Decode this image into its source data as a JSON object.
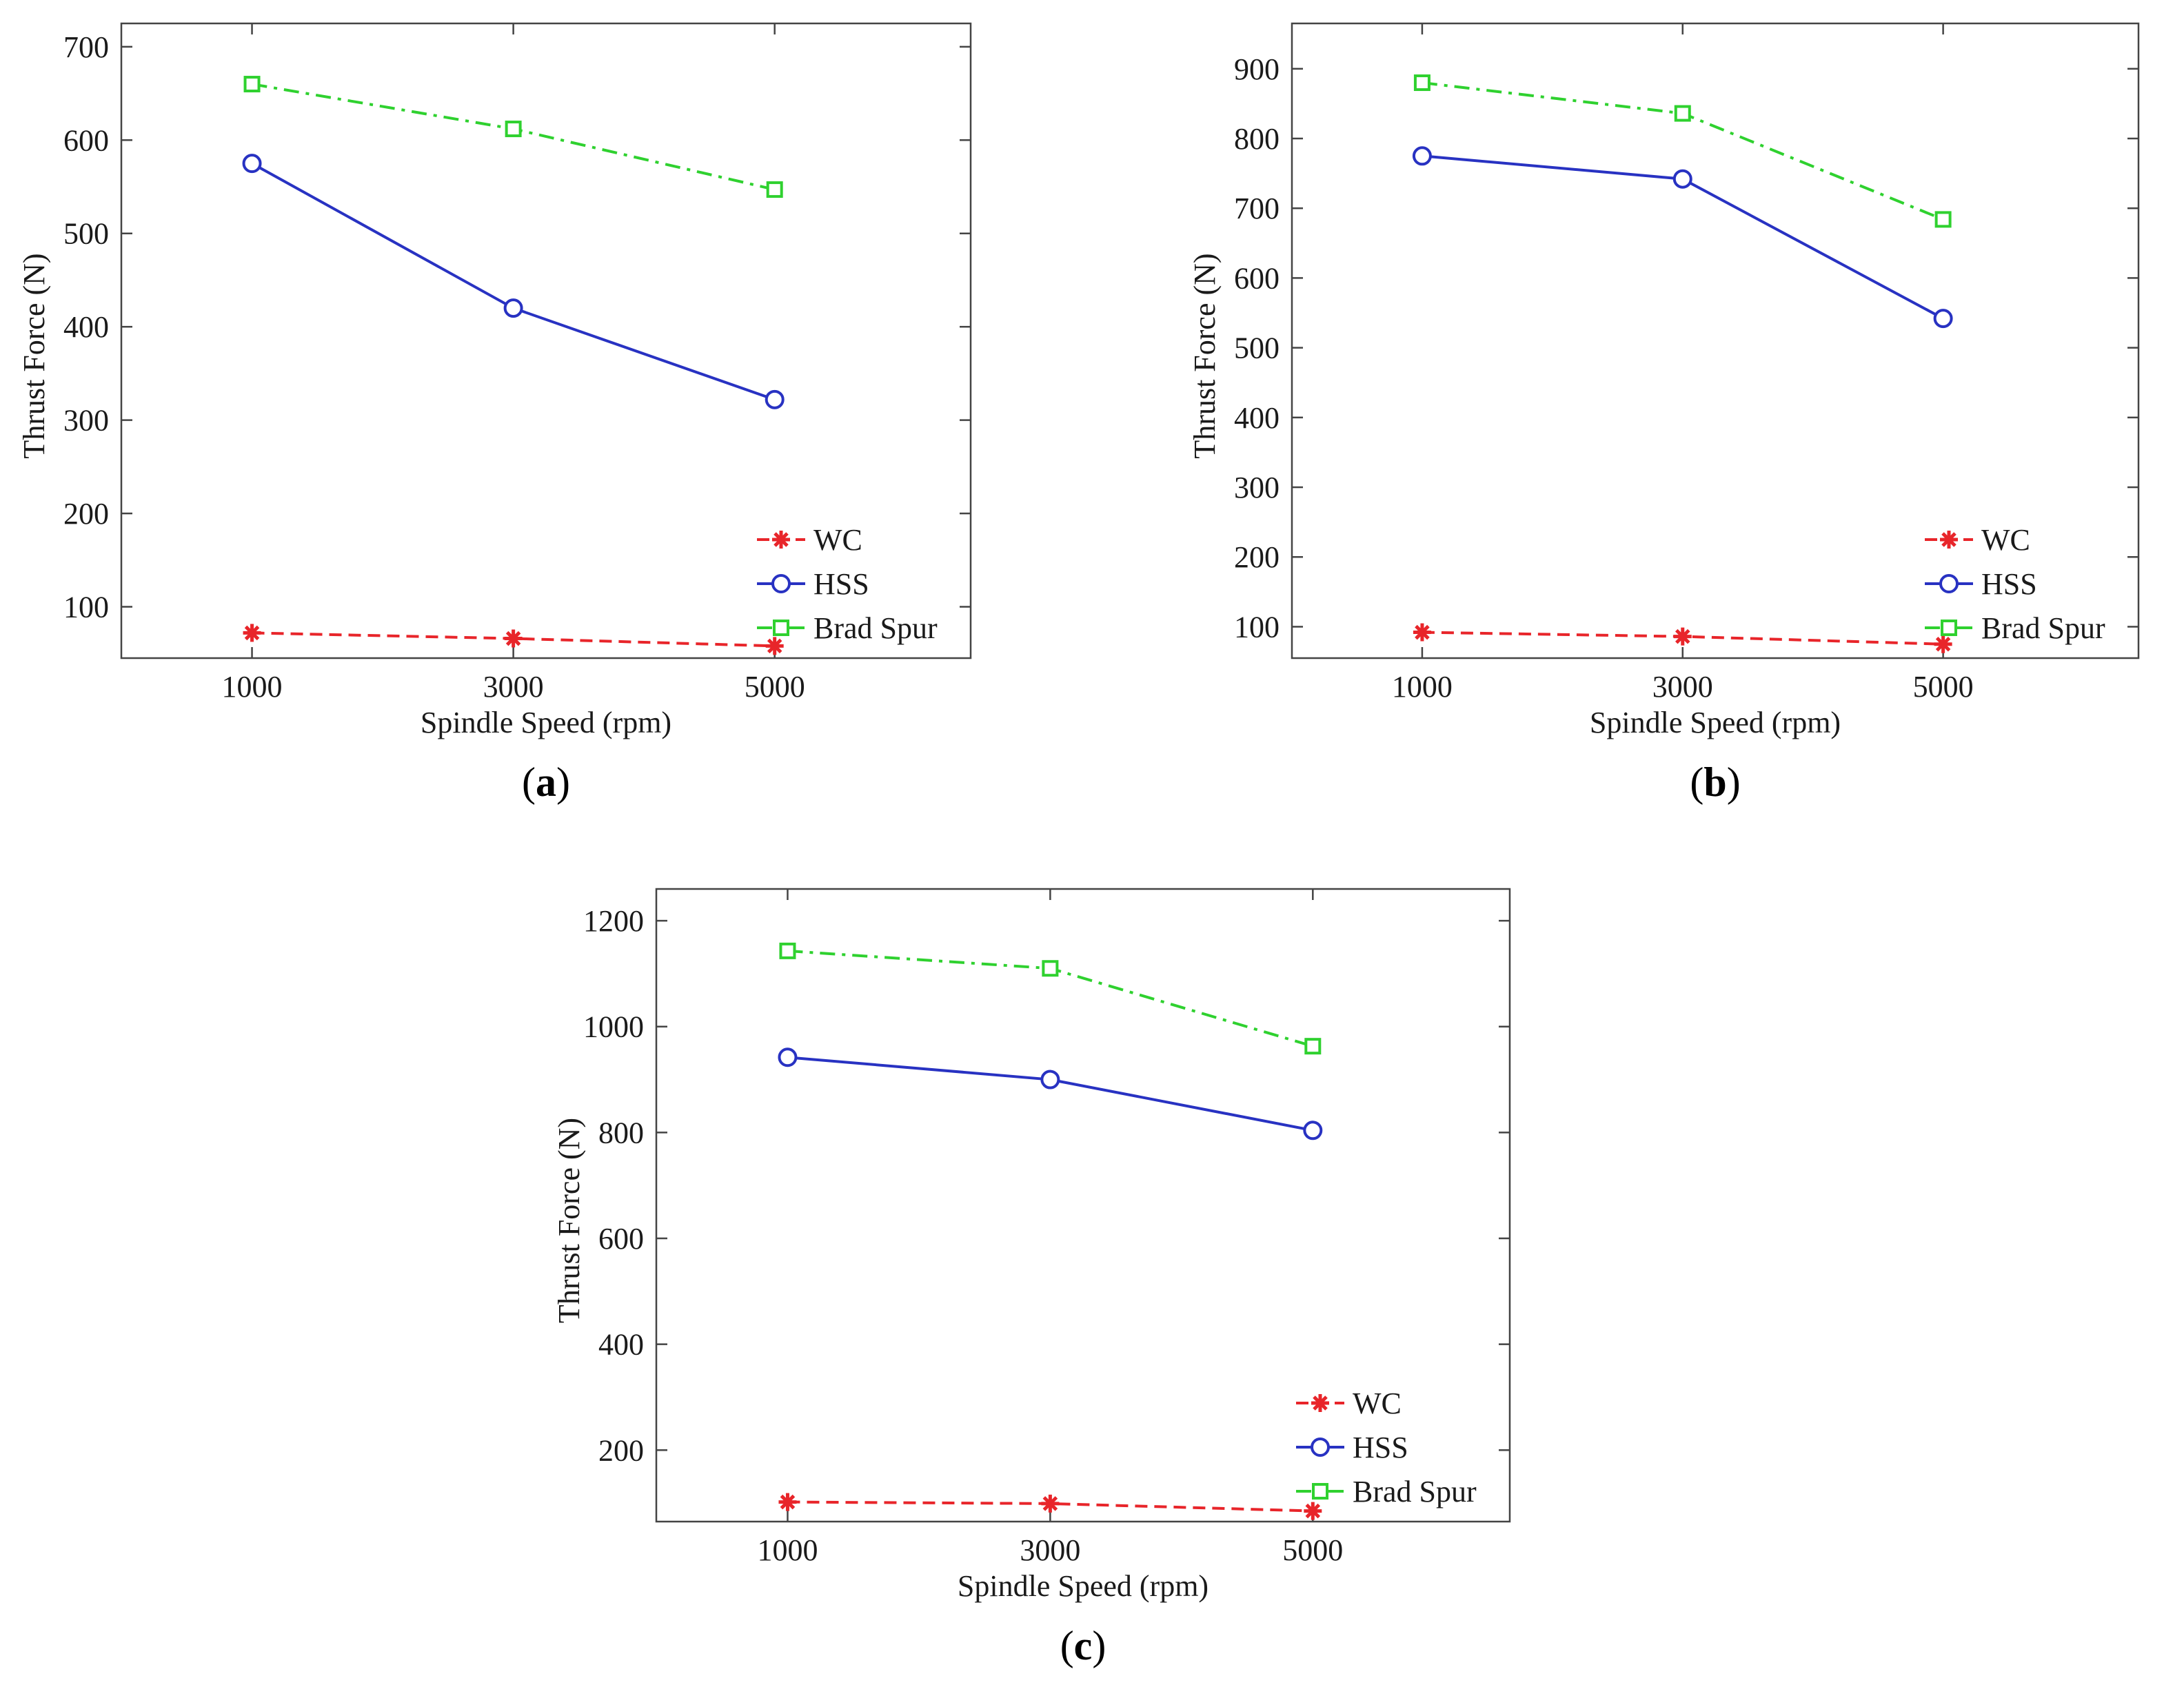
{
  "figure": {
    "colors": {
      "WC": "#e8252a",
      "HSS": "#2832c2",
      "Brad Spur": "#2fd12f",
      "axis": "#444444",
      "text": "#1a1a1a"
    }
  },
  "chart_data": [
    {
      "panel": "a",
      "caption_letter": "a",
      "type": "line",
      "xlabel": "Spindle Speed (rpm)",
      "ylabel": "Thrust Force (N)",
      "x": [
        1000,
        3000,
        5000
      ],
      "xticks": [
        "1000",
        "3000",
        "5000"
      ],
      "xlim": [
        0,
        6500
      ],
      "ylim": [
        45,
        725
      ],
      "yticks": [
        100,
        200,
        300,
        400,
        500,
        600,
        700
      ],
      "legend_position": "bottom-right",
      "series": [
        {
          "name": "WC",
          "values": [
            72,
            66,
            58
          ],
          "marker": "star",
          "line": "dashed",
          "color": "#e8252a"
        },
        {
          "name": "HSS",
          "values": [
            575,
            420,
            322
          ],
          "marker": "circle",
          "line": "solid",
          "color": "#2832c2"
        },
        {
          "name": "Brad Spur",
          "values": [
            660,
            612,
            547
          ],
          "marker": "square",
          "line": "dashdot",
          "color": "#2fd12f"
        }
      ]
    },
    {
      "panel": "b",
      "caption_letter": "b",
      "type": "line",
      "xlabel": "Spindle Speed (rpm)",
      "ylabel": "Thrust Force (N)",
      "x": [
        1000,
        3000,
        5000
      ],
      "xticks": [
        "1000",
        "3000",
        "5000"
      ],
      "xlim": [
        0,
        6500
      ],
      "ylim": [
        55,
        965
      ],
      "yticks": [
        100,
        200,
        300,
        400,
        500,
        600,
        700,
        800,
        900
      ],
      "legend_position": "bottom-right",
      "series": [
        {
          "name": "WC",
          "values": [
            92,
            86,
            75
          ],
          "marker": "star",
          "line": "dashed",
          "color": "#e8252a"
        },
        {
          "name": "HSS",
          "values": [
            775,
            742,
            542
          ],
          "marker": "circle",
          "line": "solid",
          "color": "#2832c2"
        },
        {
          "name": "Brad Spur",
          "values": [
            880,
            836,
            684
          ],
          "marker": "square",
          "line": "dashdot",
          "color": "#2fd12f"
        }
      ]
    },
    {
      "panel": "c",
      "caption_letter": "c",
      "type": "line",
      "xlabel": "Spindle Speed (rpm)",
      "ylabel": "Thrust Force (N)",
      "x": [
        1000,
        3000,
        5000
      ],
      "xticks": [
        "1000",
        "3000",
        "5000"
      ],
      "xlim": [
        0,
        6500
      ],
      "ylim": [
        65,
        1260
      ],
      "yticks": [
        200,
        400,
        600,
        800,
        1000,
        1200
      ],
      "legend_position": "bottom-right",
      "series": [
        {
          "name": "WC",
          "values": [
            102,
            99,
            85
          ],
          "marker": "star",
          "line": "dashed",
          "color": "#e8252a"
        },
        {
          "name": "HSS",
          "values": [
            942,
            900,
            804
          ],
          "marker": "circle",
          "line": "solid",
          "color": "#2832c2"
        },
        {
          "name": "Brad Spur",
          "values": [
            1143,
            1110,
            963
          ],
          "marker": "square",
          "line": "dashdot",
          "color": "#2fd12f"
        }
      ]
    }
  ]
}
